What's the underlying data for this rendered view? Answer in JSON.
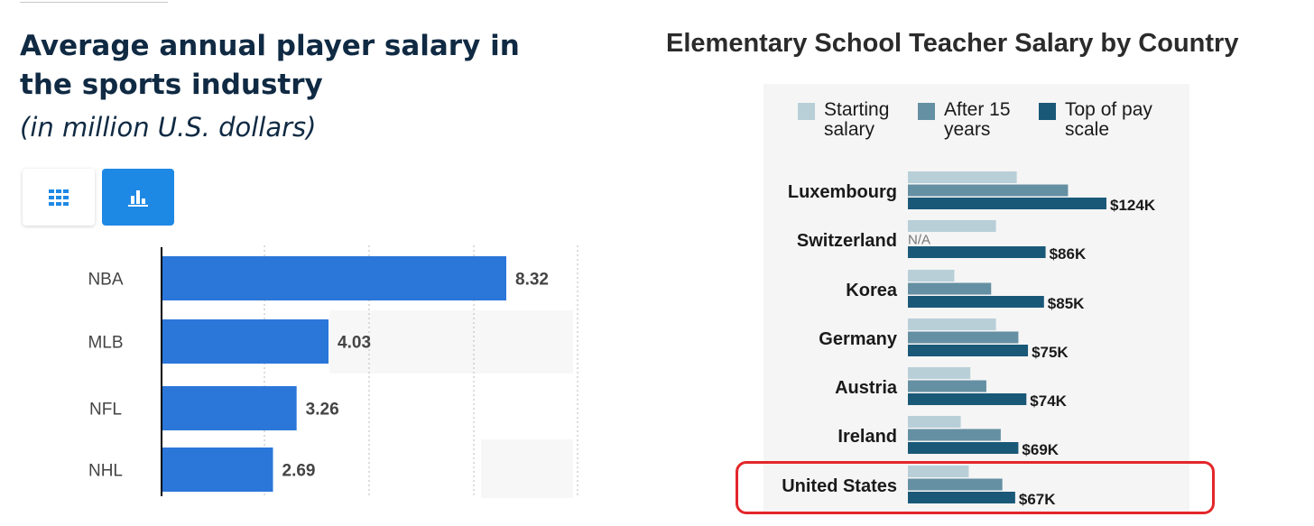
{
  "left": {
    "title": "Average annual player salary in the sports industry",
    "subtitle": "(in million U.S. dollars)",
    "toggle_table_icon": "grid-icon",
    "toggle_chart_icon": "bar-chart-icon",
    "bar_color": "#2b76d9",
    "chart_data": {
      "type": "bar",
      "orientation": "horizontal",
      "categories": [
        "NBA",
        "MLB",
        "NFL",
        "NHL"
      ],
      "values": [
        8.32,
        4.03,
        3.26,
        2.69
      ],
      "data_labels": [
        "8.32",
        "4.03",
        "3.26",
        "2.69"
      ],
      "title": "Average annual player salary in the sports industry",
      "subtitle": "(in million U.S. dollars)",
      "xlim": [
        0,
        8.5
      ],
      "grid": true
    }
  },
  "right": {
    "title": "Elementary School Teacher Salary by Country",
    "highlight_color": "#e3262a",
    "legend": [
      {
        "label": "Starting salary",
        "color": "#b8cfd8"
      },
      {
        "label": "After 15 years",
        "color": "#6590a3"
      },
      {
        "label": "Top of pay scale",
        "color": "#1a5878"
      }
    ],
    "chart_data": {
      "type": "bar",
      "orientation": "horizontal",
      "categories": [
        "Luxembourg",
        "Switzerland",
        "Korea",
        "Germany",
        "Austria",
        "Ireland",
        "United States"
      ],
      "series": [
        {
          "name": "Starting salary",
          "values": [
            68,
            55,
            29,
            55,
            39,
            33,
            38
          ]
        },
        {
          "name": "After 15 years",
          "values": [
            100,
            null,
            52,
            69,
            49,
            58,
            59
          ]
        },
        {
          "name": "Top of pay scale",
          "values": [
            124,
            86,
            85,
            75,
            74,
            69,
            67
          ]
        }
      ],
      "data_labels": [
        "$124K",
        "$86K",
        "$85K",
        "$75K",
        "$74K",
        "$69K",
        "$67K"
      ],
      "missing_label": "N/A",
      "highlighted_category": "United States",
      "title": "Elementary School Teacher Salary by Country",
      "units": "thousand U.S. dollars"
    }
  }
}
